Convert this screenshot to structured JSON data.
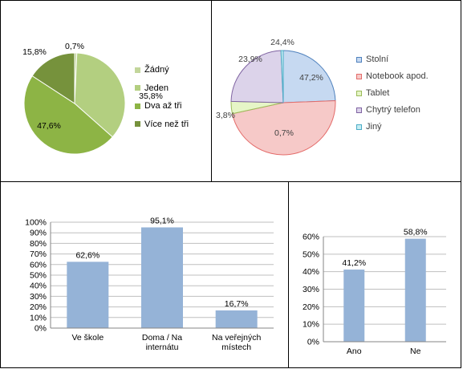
{
  "chart_data": [
    {
      "type": "pie",
      "categories": [
        "Žádný",
        "Jeden",
        "Dva až tři",
        "Více než tři"
      ],
      "values": [
        0.7,
        35.8,
        47.6,
        15.8
      ],
      "labels": [
        "0,7%",
        "35,8%",
        "47,6%",
        "15,8%"
      ],
      "colors": [
        "#C3D69B",
        "#B3CF80",
        "#8DB445",
        "#76923C"
      ],
      "legend_position": "right"
    },
    {
      "type": "pie",
      "categories": [
        "Stolní",
        "Notebook apod.",
        "Tablet",
        "Chytrý telefon",
        "Jiný"
      ],
      "values": [
        24.4,
        47.2,
        3.8,
        23.9,
        0.7
      ],
      "labels": [
        "24,4%",
        "47,2%",
        "3,8%",
        "23,9%",
        "0,7%"
      ],
      "colors": [
        "#C6D9F1",
        "#F6C9C8",
        "#E6F5C7",
        "#DCD3EA",
        "#C7EEF4"
      ],
      "edge_colors": [
        "#4F81BD",
        "#E46C6A",
        "#9BBB59",
        "#8064A2",
        "#4BACC6"
      ],
      "legend_position": "right"
    },
    {
      "type": "bar",
      "categories": [
        "Ve škole",
        "Doma / Na internátu",
        "Na veřejných místech"
      ],
      "category_lines": [
        [
          "Ve škole"
        ],
        [
          "Doma / Na",
          "internátu"
        ],
        [
          "Na veřejných",
          "místech"
        ]
      ],
      "values": [
        62.6,
        95.1,
        16.7
      ],
      "labels": [
        "62,6%",
        "95,1%",
        "16,7%"
      ],
      "ylim": [
        0,
        100
      ],
      "yticks": [
        "0%",
        "10%",
        "20%",
        "30%",
        "40%",
        "50%",
        "60%",
        "70%",
        "80%",
        "90%",
        "100%"
      ],
      "color": "#95B3D7",
      "grid": true
    },
    {
      "type": "bar",
      "categories": [
        "Ano",
        "Ne"
      ],
      "values": [
        41.2,
        58.8
      ],
      "labels": [
        "41,2%",
        "58,8%"
      ],
      "ylim": [
        0,
        60
      ],
      "yticks": [
        "0%",
        "10%",
        "20%",
        "30%",
        "40%",
        "50%",
        "60%"
      ],
      "color": "#95B3D7",
      "grid": true
    }
  ]
}
